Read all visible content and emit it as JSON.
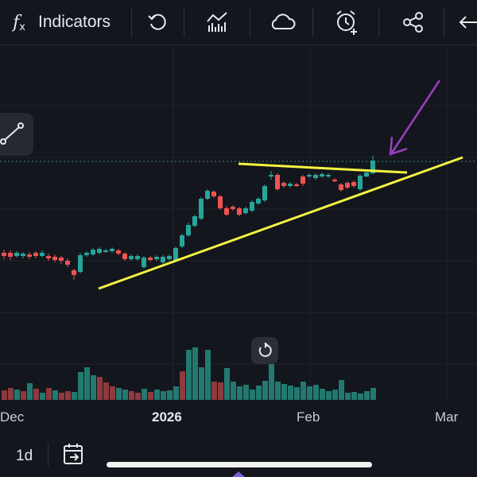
{
  "toolbar": {
    "fx_label": "f",
    "fx_sub": "x",
    "indicators_label": "Indicators",
    "icons": [
      "function-icon",
      "undo-icon",
      "chart-bars-icon",
      "cloud-icon",
      "alarm-add-icon",
      "share-icon",
      "back-arrow-icon"
    ]
  },
  "colors": {
    "background": "#14161d",
    "up": "#26a69a",
    "down": "#ef5350",
    "up_volume": "#22796f",
    "down_volume": "#8e3a3f",
    "trendline": "#f5f542",
    "annotation_arrow": "#9b3fc4",
    "price_line": "#3b8f8a"
  },
  "xaxis": {
    "labels": [
      {
        "text": "Dec",
        "bold": false
      },
      {
        "text": "2026",
        "bold": true
      },
      {
        "text": "Feb",
        "bold": false
      },
      {
        "text": "Mar",
        "bold": false
      }
    ]
  },
  "bottom": {
    "interval": "1d",
    "icons": [
      "calendar-goto-icon"
    ]
  },
  "chart_data": {
    "type": "candlestick",
    "candles": [
      [
        2,
        318,
        322,
        314,
        326
      ],
      [
        10,
        318,
        323,
        315,
        327
      ],
      [
        18,
        322,
        318,
        316,
        324
      ],
      [
        26,
        322,
        319,
        317,
        325
      ],
      [
        34,
        320,
        323,
        317,
        326
      ],
      [
        42,
        318,
        322,
        316,
        325
      ],
      [
        50,
        322,
        318,
        315,
        324
      ],
      [
        58,
        322,
        325,
        319,
        328
      ],
      [
        66,
        323,
        327,
        320,
        330
      ],
      [
        74,
        324,
        328,
        322,
        332
      ],
      [
        82,
        328,
        333,
        325,
        336
      ],
      [
        90,
        340,
        346,
        338,
        352
      ],
      [
        98,
        342,
        321,
        318,
        344
      ],
      [
        106,
        321,
        318,
        316,
        323
      ],
      [
        114,
        320,
        314,
        312,
        322
      ],
      [
        122,
        318,
        313,
        311,
        320
      ],
      [
        130,
        316,
        315,
        313,
        318
      ],
      [
        138,
        316,
        313,
        311,
        318
      ],
      [
        146,
        315,
        319,
        313,
        321
      ],
      [
        154,
        319,
        326,
        317,
        328
      ],
      [
        162,
        326,
        322,
        320,
        328
      ],
      [
        170,
        326,
        322,
        320,
        328
      ],
      [
        178,
        336,
        324,
        322,
        338
      ],
      [
        186,
        324,
        327,
        322,
        329
      ],
      [
        194,
        326,
        323,
        321,
        328
      ],
      [
        202,
        330,
        323,
        321,
        332
      ],
      [
        210,
        326,
        322,
        320,
        328
      ],
      [
        218,
        328,
        312,
        310,
        330
      ],
      [
        226,
        310,
        296,
        294,
        312
      ],
      [
        234,
        296,
        283,
        280,
        298
      ],
      [
        242,
        284,
        272,
        270,
        286
      ],
      [
        250,
        275,
        250,
        248,
        277
      ],
      [
        258,
        250,
        240,
        238,
        252
      ],
      [
        266,
        241,
        247,
        239,
        249
      ],
      [
        274,
        247,
        262,
        245,
        264
      ],
      [
        282,
        262,
        270,
        259,
        272
      ],
      [
        290,
        260,
        263,
        258,
        265
      ],
      [
        298,
        262,
        270,
        260,
        272
      ],
      [
        306,
        268,
        262,
        260,
        270
      ],
      [
        314,
        265,
        254,
        252,
        267
      ],
      [
        322,
        256,
        250,
        248,
        258
      ],
      [
        330,
        252,
        234,
        232,
        254
      ],
      [
        338,
        222,
        220,
        215,
        226
      ],
      [
        346,
        220,
        238,
        218,
        240
      ],
      [
        354,
        230,
        234,
        228,
        236
      ],
      [
        362,
        234,
        231,
        229,
        236
      ],
      [
        370,
        232,
        233,
        230,
        235
      ],
      [
        378,
        222,
        231,
        220,
        234
      ],
      [
        386,
        222,
        220,
        218,
        224
      ],
      [
        394,
        224,
        220,
        218,
        226
      ],
      [
        402,
        222,
        219,
        217,
        224
      ],
      [
        410,
        222,
        220,
        218,
        224
      ],
      [
        418,
        226,
        227,
        224,
        229
      ],
      [
        426,
        232,
        239,
        230,
        241
      ],
      [
        434,
        230,
        236,
        228,
        238
      ],
      [
        442,
        229,
        234,
        227,
        236
      ],
      [
        450,
        238,
        221,
        219,
        240
      ],
      [
        458,
        222,
        217,
        215,
        223
      ],
      [
        466,
        218,
        202,
        196,
        219
      ]
    ],
    "volume": [
      [
        2,
        491,
        1
      ],
      [
        10,
        488,
        1
      ],
      [
        18,
        490,
        0
      ],
      [
        26,
        492,
        1
      ],
      [
        34,
        482,
        0
      ],
      [
        42,
        489,
        1
      ],
      [
        50,
        494,
        0
      ],
      [
        58,
        488,
        1
      ],
      [
        66,
        491,
        0
      ],
      [
        74,
        494,
        1
      ],
      [
        82,
        492,
        1
      ],
      [
        90,
        493,
        0
      ],
      [
        98,
        468,
        0
      ],
      [
        106,
        462,
        0
      ],
      [
        114,
        472,
        0
      ],
      [
        122,
        474,
        1
      ],
      [
        130,
        481,
        1
      ],
      [
        138,
        486,
        1
      ],
      [
        146,
        488,
        0
      ],
      [
        154,
        490,
        0
      ],
      [
        162,
        492,
        1
      ],
      [
        170,
        494,
        1
      ],
      [
        178,
        489,
        0
      ],
      [
        186,
        493,
        1
      ],
      [
        194,
        490,
        0
      ],
      [
        202,
        492,
        0
      ],
      [
        210,
        491,
        0
      ],
      [
        218,
        486,
        0
      ],
      [
        226,
        467,
        1
      ],
      [
        234,
        440,
        0
      ],
      [
        242,
        437,
        0
      ],
      [
        250,
        462,
        0
      ],
      [
        258,
        440,
        0
      ],
      [
        266,
        480,
        1
      ],
      [
        274,
        481,
        1
      ],
      [
        282,
        463,
        0
      ],
      [
        290,
        480,
        0
      ],
      [
        298,
        486,
        0
      ],
      [
        306,
        484,
        0
      ],
      [
        314,
        490,
        0
      ],
      [
        322,
        485,
        0
      ],
      [
        330,
        479,
        0
      ],
      [
        338,
        458,
        0
      ],
      [
        346,
        480,
        0
      ],
      [
        354,
        483,
        0
      ],
      [
        362,
        485,
        0
      ],
      [
        370,
        487,
        0
      ],
      [
        378,
        480,
        0
      ],
      [
        386,
        486,
        0
      ],
      [
        394,
        484,
        0
      ],
      [
        402,
        489,
        0
      ],
      [
        410,
        492,
        0
      ],
      [
        418,
        490,
        0
      ],
      [
        426,
        478,
        0
      ],
      [
        434,
        494,
        0
      ],
      [
        442,
        493,
        0
      ],
      [
        450,
        495,
        0
      ],
      [
        458,
        492,
        0
      ],
      [
        466,
        488,
        0
      ]
    ],
    "axis_labels": [
      "Dec",
      "2026",
      "Feb",
      "Mar"
    ],
    "grid": true,
    "annotations": [
      "ascending trendline",
      "horizontal resistance line",
      "arrow pointing at breakout"
    ]
  }
}
